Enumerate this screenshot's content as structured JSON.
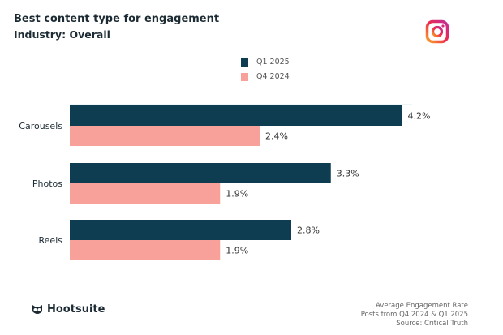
{
  "chart_data": {
    "type": "bar",
    "orientation": "horizontal",
    "title": "Best content type for engagement",
    "subtitle": "Industry: Overall",
    "categories": [
      "Carousels",
      "Photos",
      "Reels"
    ],
    "series": [
      {
        "name": "Q1 2025",
        "color": "#0e3d52",
        "values": [
          4.2,
          3.3,
          2.8
        ],
        "labels": [
          "4.2%",
          "3.3%",
          "2.8%"
        ]
      },
      {
        "name": "Q4 2024",
        "color": "#f7a19a",
        "values": [
          2.4,
          1.9,
          1.9
        ],
        "labels": [
          "2.4%",
          "1.9%",
          "1.9%"
        ]
      }
    ],
    "xlim": [
      0,
      4.4
    ],
    "grid": false,
    "legend": "top-center"
  },
  "footer": {
    "brand": "Hootsuite",
    "notes": [
      "Average Engagement Rate",
      "Posts from Q4 2024 & Q1 2025",
      "Source: Critical Truth"
    ]
  },
  "icons": {
    "top_right": "instagram-icon",
    "brand": "hootsuite-owl-icon"
  }
}
